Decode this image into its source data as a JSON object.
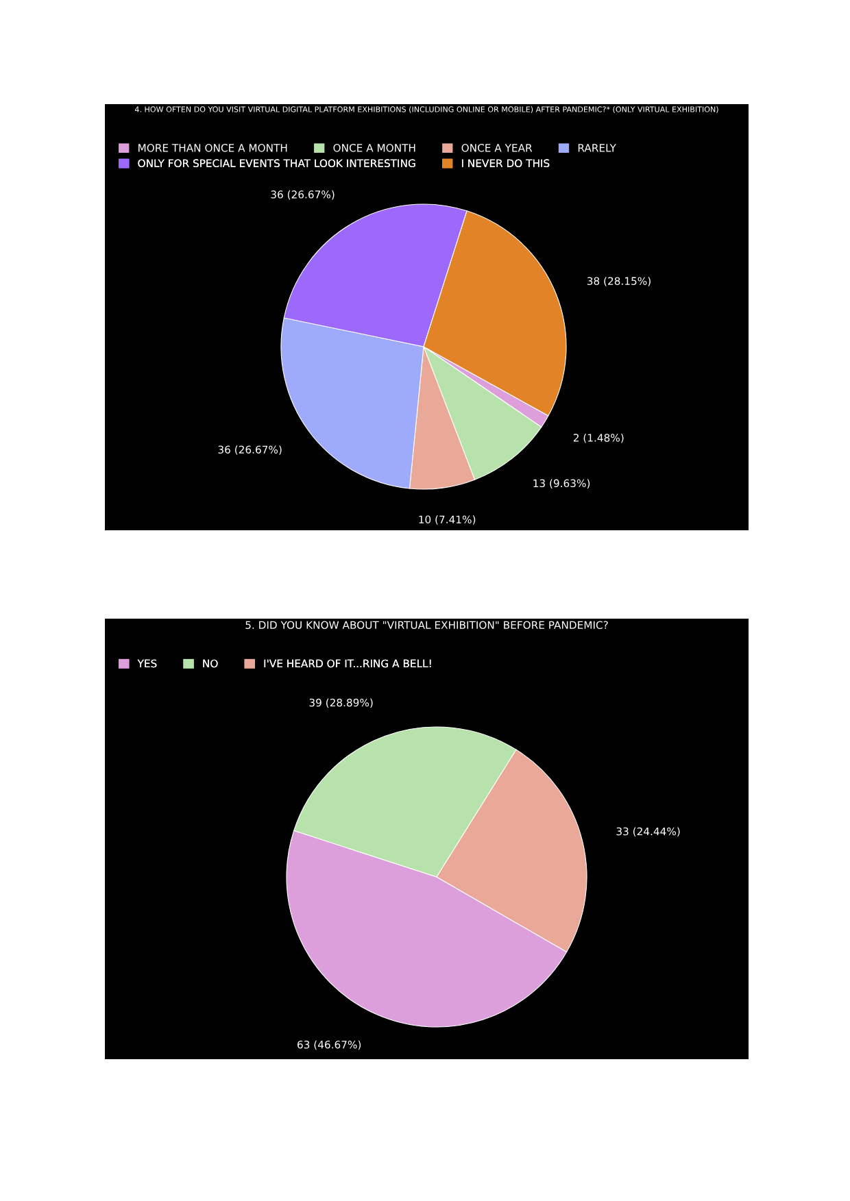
{
  "chart_data": [
    {
      "type": "pie",
      "title": "4. HOW OFTEN DO YOU VISIT VIRTUAL DIGITAL PLATFORM EXHIBITIONS (INCLUDING ONLINE OR MOBILE) AFTER PANDEMIC?* (ONLY VIRTUAL EXHIBITION)",
      "categories": [
        "MORE THAN ONCE A MONTH",
        "ONCE A MONTH",
        "ONCE A YEAR",
        "RARELY",
        "ONLY FOR SPECIAL EVENTS THAT LOOK INTERESTING",
        "I NEVER DO THIS"
      ],
      "values": [
        2,
        13,
        10,
        36,
        36,
        38
      ],
      "colors": [
        "#dc9fdc",
        "#b8e2ab",
        "#eaa898",
        "#9eaafc",
        "#9c69fc",
        "#e28327"
      ],
      "value_labels": [
        "2 (1.48%)",
        "13 (9.63%)",
        "10 (7.41%)",
        "36 (26.67%)",
        "36 (26.67%)",
        "38 (28.15%)"
      ],
      "legend": "top left"
    },
    {
      "type": "pie",
      "title": "5. DID YOU KNOW ABOUT \"VIRTUAL EXHIBITION\" BEFORE PANDEMIC?",
      "categories": [
        "YES",
        "NO",
        "I'VE HEARD OF IT...RING A BELL!"
      ],
      "values": [
        63,
        39,
        33
      ],
      "colors": [
        "#dc9fdc",
        "#b8e2ab",
        "#eaa898"
      ],
      "value_labels": [
        "63 (46.67%)",
        "39 (28.89%)",
        "33 (24.44%)"
      ],
      "legend": "top left"
    }
  ]
}
